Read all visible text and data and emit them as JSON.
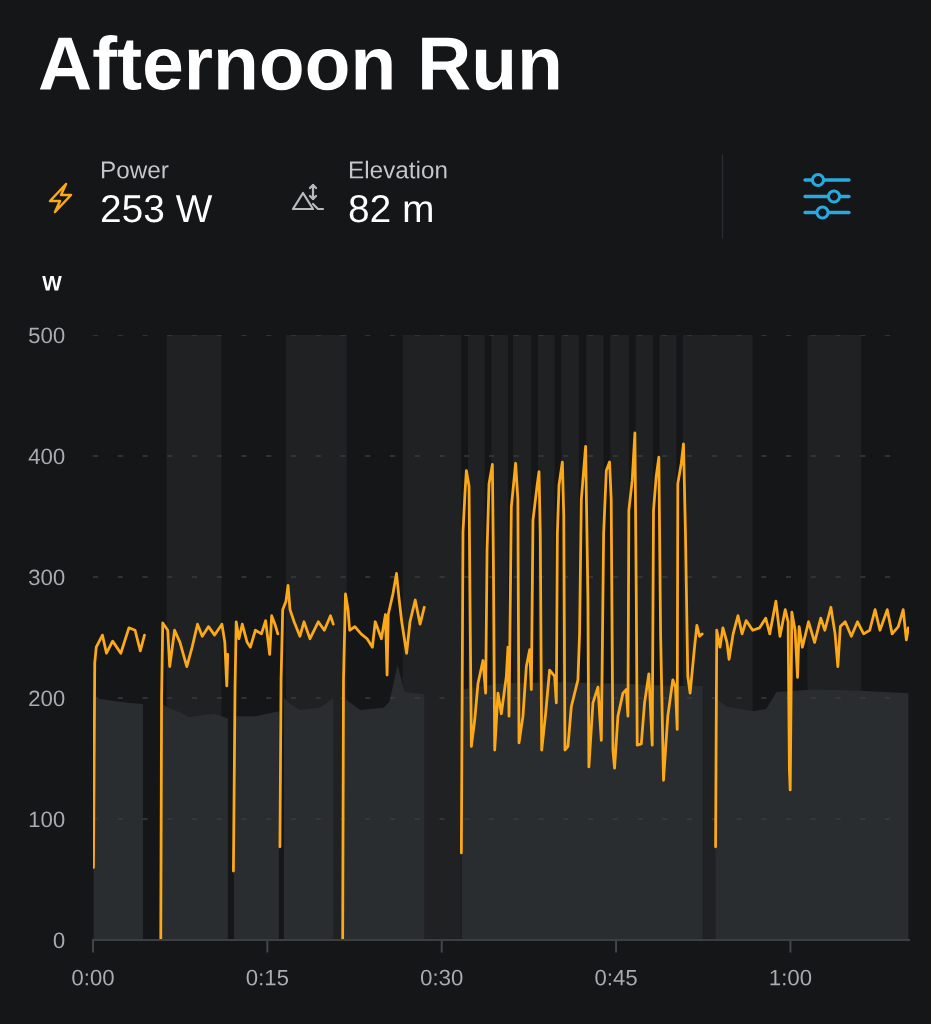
{
  "chart_data": {
    "type": "line",
    "title": "Afternoon Run",
    "ylabel": "W",
    "series": [
      {
        "color": "#fba919",
        "x": [
          0.04,
          0.15,
          0.28,
          0.81,
          1.16,
          1.69,
          2.39,
          3.09,
          3.62,
          4.07,
          4.43,
          5.1,
          5.83,
          5.9,
          6.0,
          6.43,
          6.6,
          7.02,
          7.48,
          8.07,
          8.53,
          8.99,
          9.4,
          9.94,
          10.46,
          11.09,
          11.34,
          11.51,
          11.59,
          11.85,
          12.08,
          12.22,
          12.32,
          12.56,
          12.84,
          13.26,
          13.54,
          13.97,
          14.49,
          14.85,
          15.2,
          15.37,
          15.65,
          15.9,
          16.0,
          16.08,
          16.18,
          16.32,
          16.6,
          16.78,
          16.95,
          17.3,
          17.8,
          18.15,
          18.67,
          19.38,
          19.9,
          20.43,
          20.67,
          21.1,
          21.48,
          21.55,
          21.72,
          21.94,
          22.08,
          22.53,
          23.06,
          23.58,
          24.04,
          24.28,
          24.81,
          25.16,
          25.3,
          25.4,
          25.8,
          26.11,
          26.32,
          26.56,
          26.98,
          27.27,
          27.72,
          28.14,
          28.5,
          30.1,
          31.69,
          31.83,
          32.0,
          32.12,
          32.35,
          32.46,
          32.55,
          32.84,
          33.12,
          33.55,
          33.78,
          33.9,
          34.07,
          34.36,
          34.45,
          34.56,
          34.84,
          35.13,
          35.56,
          35.7,
          35.79,
          35.99,
          36.36,
          36.55,
          36.65,
          36.99,
          37.28,
          37.57,
          37.71,
          37.85,
          38.2,
          38.37,
          38.48,
          38.6,
          38.94,
          39.28,
          39.71,
          39.86,
          39.95,
          40.09,
          40.38,
          40.5,
          40.6,
          40.86,
          41.15,
          41.72,
          41.86,
          42.01,
          42.38,
          42.58,
          42.66,
          43.01,
          43.44,
          43.73,
          43.93,
          44.16,
          44.44,
          44.58,
          44.73,
          44.87,
          45.16,
          45.59,
          45.88,
          46.02,
          46.1,
          46.39,
          46.62,
          46.74,
          46.82,
          47.17,
          47.45,
          47.82,
          48.11,
          48.22,
          48.45,
          48.68,
          48.83,
          49.08,
          49.45,
          49.88,
          50.11,
          50.26,
          50.31,
          50.61,
          50.8,
          50.97,
          51.17,
          51.37,
          51.75,
          51.95,
          52.18,
          52.41,
          53.0,
          53.56,
          53.66,
          53.94,
          54.19,
          54.54,
          54.72,
          55.07,
          55.49,
          55.84,
          56.19,
          56.75,
          57.35,
          57.87,
          58.22,
          58.75,
          59.1,
          59.55,
          59.8,
          59.91,
          59.98,
          60.12,
          60.4,
          60.61,
          60.75,
          61.03,
          61.56,
          62.08,
          62.61,
          62.96,
          63.48,
          63.84,
          64.08,
          64.29,
          64.71,
          65.24,
          65.77,
          66.3,
          66.82,
          67.28,
          67.7,
          68.33,
          68.75,
          69.28,
          69.7,
          69.97,
          70.15
        ],
        "values": [
          60,
          229,
          242,
          252,
          237,
          247,
          237,
          258,
          256,
          239,
          252,
          null,
          0,
          200,
          262,
          256,
          226,
          256,
          246,
          226,
          242,
          261,
          251,
          259,
          252,
          261,
          246,
          210,
          236,
          null,
          57,
          209,
          263,
          249,
          261,
          246,
          242,
          256,
          253,
          264,
          236,
          268,
          261,
          253,
          null,
          77,
          215,
          273,
          280,
          293,
          273,
          263,
          251,
          263,
          249,
          263,
          256,
          268,
          261,
          null,
          0,
          215,
          286,
          273,
          256,
          259,
          253,
          249,
          242,
          263,
          249,
          269,
          219,
          269,
          286,
          303,
          283,
          263,
          237,
          263,
          281,
          261,
          275,
          null,
          72,
          337,
          369,
          388,
          375,
          253,
          160,
          182,
          212,
          231,
          204,
          322,
          377,
          393,
          309,
          157,
          204,
          187,
          218,
          242,
          185,
          358,
          394,
          364,
          163,
          185,
          226,
          240,
          207,
          347,
          375,
          387,
          336,
          157,
          187,
          223,
          218,
          196,
          336,
          376,
          395,
          350,
          157,
          160,
          193,
          215,
          253,
          364,
          408,
          281,
          143,
          196,
          209,
          165,
          336,
          388,
          395,
          364,
          157,
          142,
          185,
          204,
          207,
          185,
          355,
          380,
          419,
          281,
          161,
          162,
          196,
          220,
          161,
          355,
          383,
          399,
          253,
          132,
          185,
          215,
          209,
          174,
          377,
          394,
          410,
          336,
          218,
          204,
          242,
          260,
          251,
          253,
          null,
          77,
          256,
          242,
          258,
          246,
          232,
          253,
          268,
          253,
          264,
          256,
          258,
          266,
          253,
          280,
          251,
          273,
          263,
          141,
          124,
          271,
          256,
          217,
          259,
          242,
          263,
          246,
          266,
          256,
          275,
          253,
          226,
          259,
          263,
          251,
          263,
          253,
          256,
          273,
          256,
          273,
          253,
          259,
          273,
          248,
          258
        ]
      },
      {
        "type": "area",
        "color": "#2a2d30",
        "x": [
          0.04,
          1.5,
          3.0,
          4.3,
          5.1,
          5.93,
          6.5,
          7.5,
          8.2,
          9.5,
          10.5,
          11.6,
          11.85,
          12.12,
          14.0,
          15.99,
          16.2,
          16.42,
          17.0,
          17.8,
          19.5,
          20.67,
          21.1,
          21.58,
          23.0,
          25.0,
          25.5,
          26.2,
          26.8,
          28.5,
          30.1,
          31.72,
          35.0,
          40.0,
          45.0,
          50.0,
          52.44,
          53.0,
          53.56,
          54.5,
          56.8,
          57.9,
          58.8,
          62.0,
          66.0,
          70.15
        ],
        "values": [
          200,
          198,
          196,
          195,
          null,
          195,
          192,
          188,
          184,
          186,
          187,
          183,
          null,
          185,
          185,
          189,
          null,
          200,
          195,
          190,
          192,
          200,
          null,
          200,
          190,
          192,
          197,
          227,
          205,
          203,
          null,
          207,
          212,
          213,
          212,
          210,
          210,
          null,
          200,
          193,
          189,
          191,
          205,
          207,
          206,
          204
        ]
      }
    ],
    "xlim": [
      0,
      70.2
    ],
    "xticks": [
      {
        "value": 0,
        "label": "0:00"
      },
      {
        "value": 15,
        "label": "0:15"
      },
      {
        "value": 30,
        "label": "0:30"
      },
      {
        "value": 45,
        "label": "0:45"
      },
      {
        "value": 60,
        "label": "1:00"
      }
    ],
    "ylim": [
      0,
      500
    ],
    "yticks": [
      0,
      100,
      200,
      300,
      400,
      500
    ],
    "grid": "y",
    "annotations": [
      "Power",
      "253 W",
      "Elevation",
      "82 m"
    ],
    "bands": [
      {
        "axis": "x",
        "from": 6.33,
        "to": 11.05,
        "color": "#1f2123"
      },
      {
        "axis": "x",
        "from": 16.59,
        "to": 21.83,
        "color": "#1f2123"
      },
      {
        "axis": "x",
        "from": 26.65,
        "to": 31.69,
        "color": "#1f2123"
      },
      {
        "axis": "x",
        "from": 32.26,
        "to": 33.7,
        "color": "#1f2123"
      },
      {
        "axis": "x",
        "from": 34.27,
        "to": 35.7,
        "color": "#1f2123"
      },
      {
        "axis": "x",
        "from": 36.13,
        "to": 37.71,
        "color": "#1f2123"
      },
      {
        "axis": "x",
        "from": 38.28,
        "to": 39.71,
        "color": "#1f2123"
      },
      {
        "axis": "x",
        "from": 40.29,
        "to": 41.8,
        "color": "#1f2123"
      },
      {
        "axis": "x",
        "from": 42.44,
        "to": 43.93,
        "color": "#1f2123"
      },
      {
        "axis": "x",
        "from": 44.5,
        "to": 46.1,
        "color": "#1f2123"
      },
      {
        "axis": "x",
        "from": 46.68,
        "to": 48.17,
        "color": "#1f2123"
      },
      {
        "axis": "x",
        "from": 48.74,
        "to": 50.18,
        "color": "#1f2123"
      },
      {
        "axis": "x",
        "from": 50.74,
        "to": 56.74,
        "color": "#1f2123"
      },
      {
        "axis": "x",
        "from": 61.46,
        "to": 66.1,
        "color": "#1f2123"
      }
    ]
  }
}
